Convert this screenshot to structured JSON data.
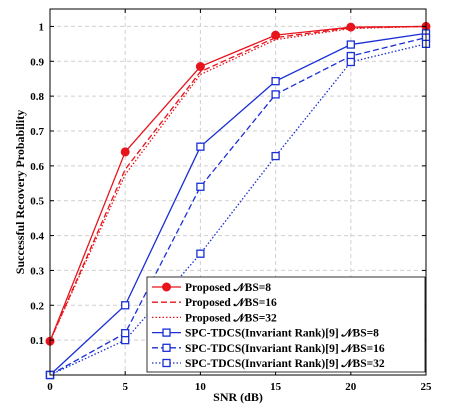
{
  "chart_data": {
    "type": "line",
    "xlabel": "SNR (dB)",
    "ylabel": "Successful Recovery Probability",
    "xlim": [
      0,
      25
    ],
    "ylim": [
      0,
      1.05
    ],
    "xticks": [
      0,
      5,
      10,
      15,
      20,
      25
    ],
    "yticks": [
      0.1,
      0.2,
      0.3,
      0.4,
      0.5,
      0.6,
      0.7,
      0.8,
      0.9,
      1
    ],
    "grid": true,
    "legend_position": "bottom-right",
    "x": [
      0,
      5,
      10,
      15,
      20,
      25
    ],
    "series": [
      {
        "name": "Proposed 𝒩BS=8",
        "color": "#e8141c",
        "dash": "solid",
        "marker": "circle",
        "values": [
          0.097,
          0.64,
          0.885,
          0.975,
          0.998,
          1.0
        ]
      },
      {
        "name": "Proposed 𝒩BS=16",
        "color": "#e8141c",
        "dash": "dashed",
        "marker": "none",
        "values": [
          0.097,
          0.59,
          0.87,
          0.968,
          0.996,
          1.0
        ]
      },
      {
        "name": "Proposed 𝒩BS=32",
        "color": "#e8141c",
        "dash": "dotted",
        "marker": "none",
        "values": [
          0.097,
          0.575,
          0.862,
          0.962,
          0.994,
          1.0
        ]
      },
      {
        "name": "SPC-TDCS(Invariant Rank)[9] 𝒩BS=8",
        "color": "#1a2fd6",
        "dash": "solid",
        "marker": "square",
        "values": [
          0.0,
          0.2,
          0.655,
          0.843,
          0.948,
          0.98
        ]
      },
      {
        "name": "SPC-TDCS(Invariant Rank)[9] 𝒩BS=16",
        "color": "#1a2fd6",
        "dash": "dashed",
        "marker": "square",
        "values": [
          0.0,
          0.12,
          0.54,
          0.805,
          0.915,
          0.968
        ]
      },
      {
        "name": "SPC-TDCS(Invariant Rank)[9] 𝒩BS=32",
        "color": "#1a2fd6",
        "dash": "dotted",
        "marker": "square",
        "values": [
          0.0,
          0.1,
          0.348,
          0.628,
          0.898,
          0.95
        ]
      }
    ]
  }
}
